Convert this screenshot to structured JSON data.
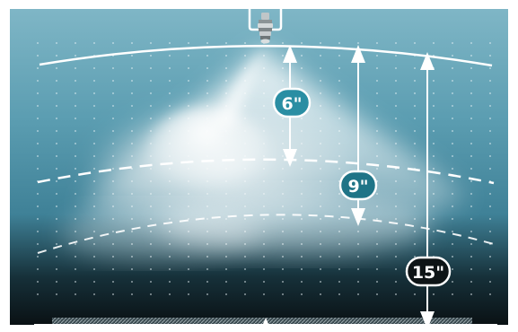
{
  "diagram": {
    "measurements": [
      {
        "id": "six",
        "label": "6\"",
        "badge_color": "#2a8ea3"
      },
      {
        "id": "nine",
        "label": "9\"",
        "badge_color": "#1f7487"
      },
      {
        "id": "fifteen",
        "label": "15\"",
        "badge_color": "#0e1416"
      }
    ],
    "colors": {
      "background_top": "#7fb6c6",
      "background_mid": "#3f8197",
      "background_bottom": "#0a1114",
      "spray": "#ffffff",
      "arc": "#ffffff",
      "grid_dot": "#e8f3f6"
    },
    "icons": [
      "nozzle-icon",
      "mount-bracket-icon"
    ]
  }
}
